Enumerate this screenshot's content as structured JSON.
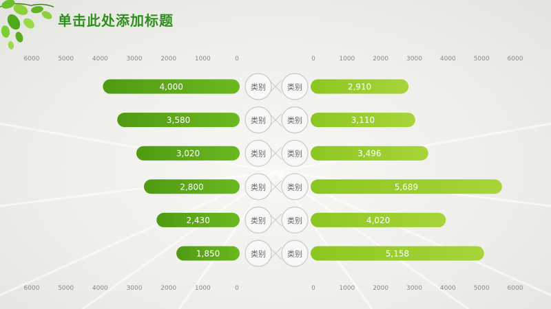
{
  "title": "单击此处添加标题",
  "colors": {
    "left_bar_start": "#4f9a12",
    "left_bar_end": "#6cb820",
    "right_bar_start": "#8cc621",
    "right_bar_end": "#a8d43a",
    "tick_text": "#888888",
    "title": "#2f8f1f"
  },
  "chart_data": {
    "type": "bar",
    "layout": "butterfly",
    "categories": [
      "类别",
      "类别",
      "类别",
      "类别",
      "类别",
      "类别"
    ],
    "series": [
      {
        "side": "left",
        "values": [
          4000,
          3580,
          3020,
          2800,
          2430,
          1850
        ],
        "labels": [
          "4,000",
          "3,580",
          "3,020",
          "2,800",
          "2,430",
          "1,850"
        ]
      },
      {
        "side": "right",
        "values": [
          2910,
          3110,
          3496,
          5689,
          4020,
          5158
        ],
        "labels": [
          "2,910",
          "3,110",
          "3,496",
          "5,689",
          "4,020",
          "5,158"
        ]
      }
    ],
    "left_ticks": [
      "6000",
      "5000",
      "4000",
      "3000",
      "2000",
      "1000",
      "0"
    ],
    "right_ticks": [
      "0",
      "1000",
      "2000",
      "3000",
      "4000",
      "5000",
      "6000"
    ],
    "axis_range": [
      0,
      6000
    ],
    "grid": false
  }
}
